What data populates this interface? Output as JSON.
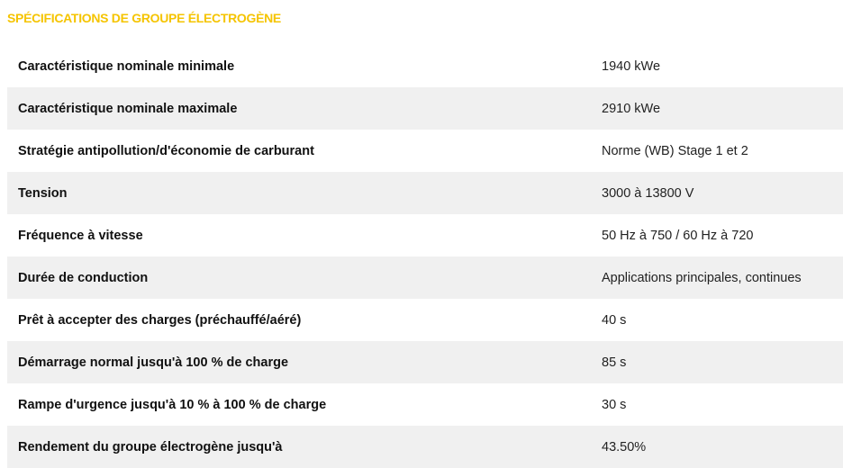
{
  "section": {
    "title": "SPÉCIFICATIONS DE GROUPE ÉLECTROGÈNE"
  },
  "specs": [
    {
      "label": "Caractéristique nominale minimale",
      "value": "1940 kWe"
    },
    {
      "label": "Caractéristique nominale maximale",
      "value": "2910 kWe"
    },
    {
      "label": "Stratégie antipollution/d'économie de carburant",
      "value": "Norme (WB) Stage 1 et 2"
    },
    {
      "label": "Tension",
      "value": "3000 à 13800 V"
    },
    {
      "label": "Fréquence à vitesse",
      "value": "50 Hz à 750 / 60 Hz à 720"
    },
    {
      "label": "Durée de conduction",
      "value": "Applications principales, continues"
    },
    {
      "label": "Prêt à accepter des charges (préchauffé/aéré)",
      "value": "40 s"
    },
    {
      "label": "Démarrage normal jusqu'à 100 % de charge",
      "value": "85 s"
    },
    {
      "label": "Rampe d'urgence jusqu'à 10 % à 100 % de charge",
      "value": "30 s"
    },
    {
      "label": "Rendement du groupe électrogène jusqu'à",
      "value": "43.50%"
    }
  ],
  "colors": {
    "title": "#f5c400",
    "row_alt": "#f0f0f0"
  }
}
